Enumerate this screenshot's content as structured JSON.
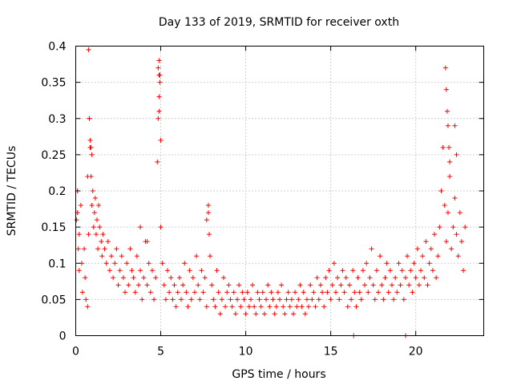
{
  "chart_data": {
    "type": "scatter",
    "title": "Day 133 of 2019, SRMTID for receiver oxth",
    "xlabel": "GPS time / hours",
    "ylabel": "SRMTID / TECUs",
    "xlim": [
      0,
      24
    ],
    "ylim": [
      0,
      0.4
    ],
    "xticks": [
      0,
      5,
      10,
      15,
      20
    ],
    "xtick_labels": [
      "0",
      "5",
      "10",
      "15",
      "20"
    ],
    "yticks": [
      0,
      0.05,
      0.1,
      0.15,
      0.2,
      0.25,
      0.3,
      0.35,
      0.4
    ],
    "ytick_labels": [
      "0",
      "0.05",
      "0.1",
      "0.15",
      "0.2",
      "0.25",
      "0.3",
      "0.35",
      "0.4"
    ],
    "grid": true,
    "marker": "plus",
    "color": "#ff0000",
    "series": [
      {
        "name": "SRMTID",
        "x": [
          0.05,
          0.1,
          0.15,
          0.2,
          0.3,
          0.35,
          0.4,
          0.5,
          0.55,
          0.6,
          0.7,
          0.75,
          0.8,
          0.85,
          0.9,
          0.95,
          1.0,
          1.05,
          1.1,
          1.15,
          1.2,
          1.25,
          1.3,
          1.35,
          1.4,
          1.5,
          1.55,
          1.6,
          1.7,
          1.8,
          1.9,
          2.0,
          2.1,
          2.2,
          2.3,
          2.4,
          2.5,
          2.6,
          2.7,
          2.8,
          2.9,
          3.0,
          3.1,
          3.2,
          3.3,
          3.4,
          3.5,
          3.6,
          3.7,
          3.8,
          3.9,
          4.0,
          4.1,
          4.2,
          4.3,
          4.4,
          4.5,
          4.6,
          4.7,
          4.8,
          4.85,
          4.9,
          4.95,
          5.0,
          5.1,
          5.2,
          5.3,
          5.4,
          5.5,
          5.6,
          5.7,
          5.8,
          5.9,
          6.0,
          6.1,
          6.2,
          6.3,
          6.4,
          6.5,
          6.6,
          6.7,
          6.8,
          6.9,
          7.0,
          7.1,
          7.2,
          7.3,
          7.4,
          7.5,
          7.6,
          7.7,
          7.8,
          7.85,
          7.9,
          8.0,
          8.1,
          8.2,
          8.3,
          8.4,
          8.5,
          8.6,
          8.7,
          8.8,
          8.9,
          9.0,
          9.1,
          9.2,
          9.3,
          9.4,
          9.5,
          9.6,
          9.7,
          9.8,
          9.9,
          10.0,
          10.1,
          10.2,
          10.3,
          10.4,
          10.5,
          10.6,
          10.7,
          10.8,
          10.9,
          11.0,
          11.1,
          11.2,
          11.3,
          11.4,
          11.5,
          11.6,
          11.7,
          11.8,
          11.9,
          12.0,
          12.1,
          12.2,
          12.3,
          12.4,
          12.5,
          12.6,
          12.7,
          12.8,
          12.9,
          13.0,
          13.1,
          13.2,
          13.3,
          13.4,
          13.5,
          13.6,
          13.7,
          13.8,
          13.9,
          14.0,
          14.1,
          14.2,
          14.3,
          14.4,
          14.5,
          14.6,
          14.7,
          14.8,
          14.9,
          15.0,
          15.1,
          15.2,
          15.3,
          15.4,
          15.5,
          15.6,
          15.7,
          15.8,
          15.9,
          16.0,
          16.1,
          16.2,
          16.3,
          16.4,
          16.5,
          16.6,
          16.7,
          16.8,
          16.9,
          17.0,
          17.1,
          17.2,
          17.3,
          17.4,
          17.5,
          17.6,
          17.7,
          17.8,
          17.9,
          18.0,
          18.1,
          18.2,
          18.3,
          18.4,
          18.5,
          18.6,
          18.7,
          18.8,
          18.9,
          19.0,
          19.1,
          19.2,
          19.3,
          19.4,
          19.5,
          19.6,
          19.7,
          19.8,
          19.9,
          20.0,
          20.1,
          20.2,
          20.3,
          20.4,
          20.5,
          20.6,
          20.7,
          20.8,
          20.9,
          21.0,
          21.1,
          21.2,
          21.3,
          21.4,
          21.5,
          21.6,
          21.7,
          21.8,
          21.9,
          22.0,
          22.1,
          22.2,
          22.3,
          22.4,
          22.5,
          22.6,
          22.7,
          22.8,
          22.9,
          4.9,
          4.9,
          4.85,
          4.95,
          4.9,
          5.0,
          0.75,
          0.8,
          0.85,
          0.9,
          0.95,
          0.7,
          21.75,
          21.8,
          21.85,
          21.9,
          21.95,
          22.0,
          22.3,
          22.4,
          16.35,
          19.4,
          7.8,
          7.7,
          0.1,
          0.2,
          3.8,
          4.2
        ],
        "y": [
          0.16,
          0.2,
          0.12,
          0.09,
          0.18,
          0.1,
          0.06,
          0.12,
          0.08,
          0.05,
          0.04,
          0.14,
          0.3,
          0.26,
          0.22,
          0.18,
          0.2,
          0.15,
          0.17,
          0.19,
          0.14,
          0.16,
          0.12,
          0.18,
          0.15,
          0.13,
          0.11,
          0.14,
          0.12,
          0.1,
          0.13,
          0.09,
          0.11,
          0.08,
          0.1,
          0.12,
          0.07,
          0.09,
          0.11,
          0.08,
          0.06,
          0.1,
          0.07,
          0.12,
          0.09,
          0.08,
          0.06,
          0.11,
          0.07,
          0.09,
          0.05,
          0.08,
          0.13,
          0.07,
          0.1,
          0.06,
          0.09,
          0.05,
          0.08,
          0.24,
          0.3,
          0.33,
          0.36,
          0.15,
          0.1,
          0.07,
          0.05,
          0.09,
          0.06,
          0.08,
          0.05,
          0.07,
          0.04,
          0.06,
          0.08,
          0.05,
          0.07,
          0.1,
          0.06,
          0.04,
          0.09,
          0.05,
          0.08,
          0.06,
          0.11,
          0.07,
          0.05,
          0.09,
          0.06,
          0.08,
          0.04,
          0.17,
          0.14,
          0.11,
          0.07,
          0.05,
          0.04,
          0.09,
          0.06,
          0.03,
          0.05,
          0.08,
          0.04,
          0.06,
          0.07,
          0.05,
          0.04,
          0.06,
          0.03,
          0.05,
          0.07,
          0.04,
          0.06,
          0.05,
          0.03,
          0.06,
          0.04,
          0.05,
          0.07,
          0.04,
          0.03,
          0.06,
          0.05,
          0.04,
          0.06,
          0.03,
          0.05,
          0.07,
          0.04,
          0.06,
          0.05,
          0.03,
          0.04,
          0.06,
          0.05,
          0.07,
          0.04,
          0.03,
          0.05,
          0.06,
          0.04,
          0.05,
          0.03,
          0.06,
          0.04,
          0.05,
          0.07,
          0.04,
          0.06,
          0.03,
          0.05,
          0.04,
          0.07,
          0.05,
          0.06,
          0.04,
          0.08,
          0.05,
          0.07,
          0.06,
          0.04,
          0.08,
          0.06,
          0.09,
          0.05,
          0.07,
          0.1,
          0.06,
          0.08,
          0.05,
          0.07,
          0.09,
          0.06,
          0.08,
          0.04,
          0.07,
          0.05,
          0.09,
          0.06,
          0.04,
          0.08,
          0.06,
          0.05,
          0.09,
          0.07,
          0.1,
          0.06,
          0.08,
          0.12,
          0.07,
          0.05,
          0.09,
          0.06,
          0.11,
          0.07,
          0.05,
          0.08,
          0.1,
          0.06,
          0.09,
          0.07,
          0.05,
          0.08,
          0.06,
          0.1,
          0.07,
          0.09,
          0.05,
          0.08,
          0.11,
          0.07,
          0.09,
          0.06,
          0.1,
          0.08,
          0.12,
          0.07,
          0.09,
          0.11,
          0.08,
          0.13,
          0.07,
          0.1,
          0.12,
          0.09,
          0.14,
          0.08,
          0.11,
          0.15,
          0.2,
          0.26,
          0.18,
          0.13,
          0.17,
          0.22,
          0.12,
          0.15,
          0.19,
          0.14,
          0.11,
          0.17,
          0.13,
          0.09,
          0.15,
          0.38,
          0.36,
          0.37,
          0.35,
          0.31,
          0.27,
          0.395,
          0.3,
          0.27,
          0.26,
          0.25,
          0.22,
          0.37,
          0.34,
          0.31,
          0.29,
          0.26,
          0.24,
          0.29,
          0.25,
          0.0,
          0.0,
          0.18,
          0.16,
          0.17,
          0.14,
          0.15,
          0.13
        ]
      }
    ]
  }
}
